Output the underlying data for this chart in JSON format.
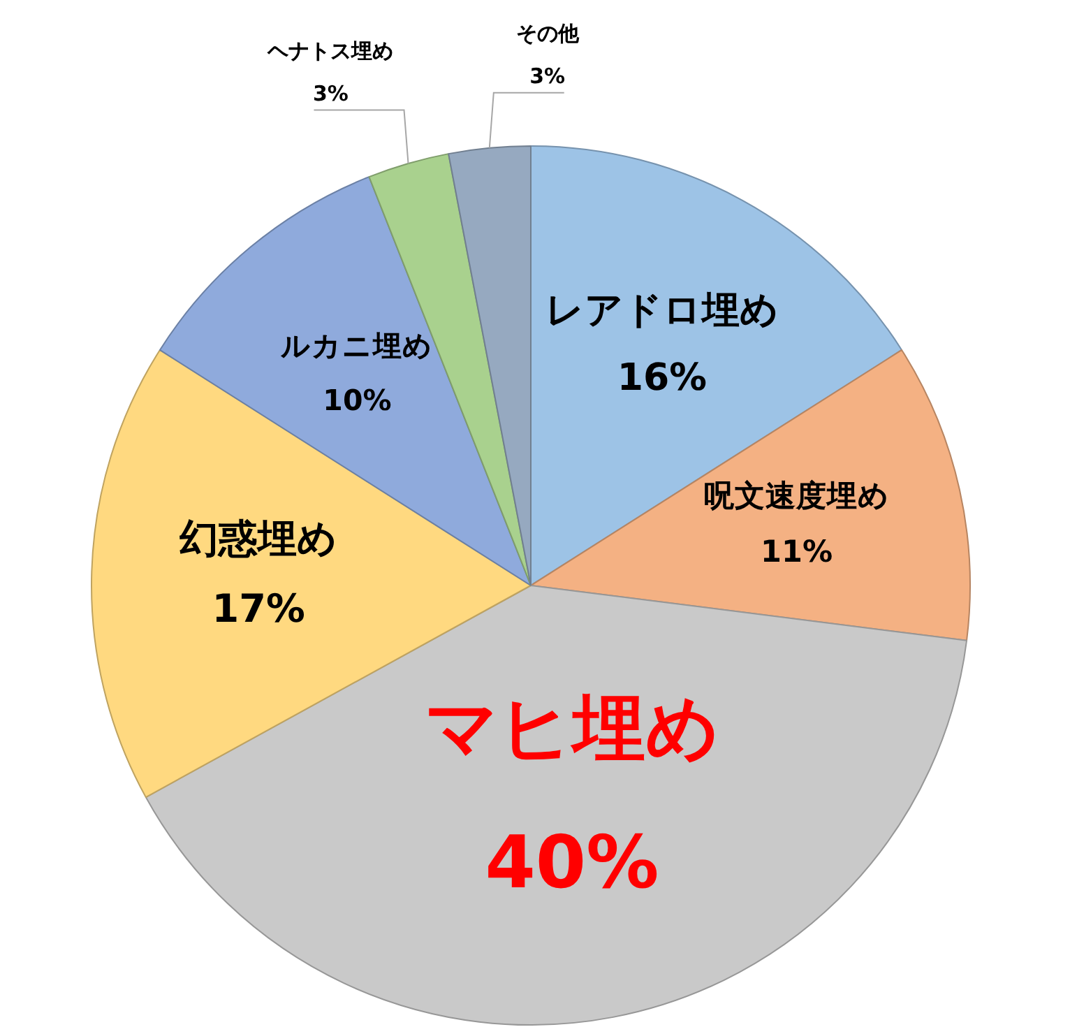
{
  "chart_data": {
    "type": "pie",
    "categories": [
      "レアドロ埋め",
      "呪文速度埋め",
      "マヒ埋め",
      "幻惑埋め",
      "ルカニ埋め",
      "ヘナトス埋め",
      "その他"
    ],
    "values": [
      16,
      11,
      40,
      17,
      10,
      3,
      3
    ],
    "value_labels": [
      "16%",
      "11%",
      "40%",
      "17%",
      "10%",
      "3%",
      "3%"
    ],
    "colors": [
      "#9dc3e6",
      "#f4b183",
      "#c9c9c9",
      "#ffd980",
      "#8faadc",
      "#a9d18e",
      "#96a9c0"
    ],
    "legend": false
  }
}
